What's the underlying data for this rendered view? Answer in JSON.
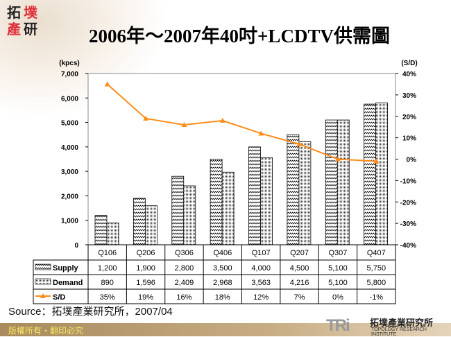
{
  "logo_text": "拓墣產研",
  "title": "2006年～2007年40吋+LCDTV供需圖",
  "source": "Source：拓墣產業研究所，2007/04",
  "footer": "版權所有・翻印必究",
  "brand": {
    "mark": "TRi",
    "name_cn": "拓墣產業研究所",
    "name_en": "TOPOLOGY RESEARCH INSTITUTE"
  },
  "chart_data": {
    "type": "bar+line",
    "categories": [
      "Q106",
      "Q206",
      "Q306",
      "Q406",
      "Q107",
      "Q207",
      "Q307",
      "Q407"
    ],
    "left_axis": {
      "label": "(kpcs)",
      "range": [
        0,
        7000
      ],
      "ticks": [
        "0",
        "1,000",
        "2,000",
        "3,000",
        "4,000",
        "5,000",
        "6,000",
        "7,000"
      ]
    },
    "right_axis": {
      "label": "(S/D)",
      "range": [
        -40,
        40
      ],
      "ticks": [
        "-40%",
        "-30%",
        "-20%",
        "-10%",
        "0%",
        "10%",
        "20%",
        "30%",
        "40%"
      ]
    },
    "series": [
      {
        "name": "Supply",
        "type": "bar",
        "values": [
          1200,
          1900,
          2800,
          3500,
          4000,
          4500,
          5100,
          5750
        ],
        "labels": [
          "1,200",
          "1,900",
          "2,800",
          "3,500",
          "4,000",
          "4,500",
          "5,100",
          "5,750"
        ]
      },
      {
        "name": "Demand",
        "type": "bar",
        "values": [
          890,
          1596,
          2409,
          2968,
          3563,
          4216,
          5100,
          5800
        ],
        "labels": [
          "890",
          "1,596",
          "2,409",
          "2,968",
          "3,563",
          "4,216",
          "5,100",
          "5,800"
        ]
      },
      {
        "name": "S/D",
        "type": "line",
        "axis": "right",
        "values": [
          35,
          19,
          16,
          18,
          12,
          7,
          0,
          -1
        ],
        "labels": [
          "35%",
          "19%",
          "16%",
          "18%",
          "12%",
          "7%",
          "0%",
          "-1%"
        ],
        "color": "#ff8c1a"
      }
    ],
    "grid": false,
    "legend": "data-table"
  }
}
